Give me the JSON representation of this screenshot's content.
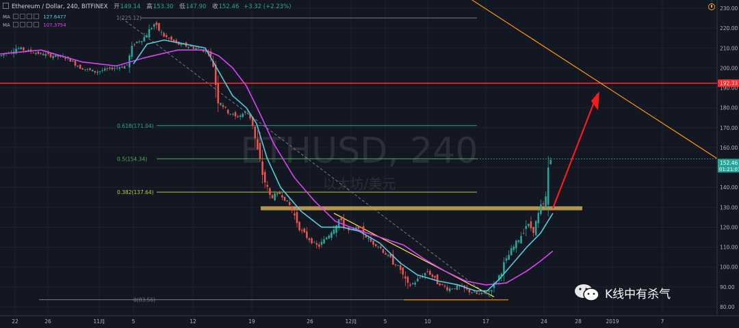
{
  "header": {
    "symbol": "Ethereum / Dollar, 240, BITFINEX",
    "open_label": "开",
    "open_value": "149.14",
    "high_label": "高",
    "high_value": "153.30",
    "low_label": "低",
    "low_value": "147.90",
    "close_label": "收",
    "close_value": "152.46",
    "change": "+3.32 (+2.23%)"
  },
  "indicators": [
    {
      "label": "MA",
      "value": "127.6477",
      "color": "#4dd0e1"
    },
    {
      "label": "MA",
      "value": "107.3754",
      "color": "#e040fb"
    }
  ],
  "watermark": {
    "title": "ETHUSD, 240",
    "subtitle": "以太坊/美元"
  },
  "wechat": {
    "text": "K线中有杀气",
    "icon": "wechat-icon"
  },
  "colors": {
    "background": "#131722",
    "up": "#26a69a",
    "down": "#ef5350",
    "ma_fast": "#4dd0e1",
    "ma_slow": "#e040fb",
    "resistance": "#ff2a2a",
    "trendline": "#ff9800",
    "arrow": "#ff1a1a",
    "support_zone": "#c8a052"
  },
  "chart_data": {
    "type": "candlestick",
    "ylim": [
      78,
      232
    ],
    "y_ticks": [
      "230.00",
      "220.00",
      "210.00",
      "200.00",
      "190.00",
      "180.00",
      "170.00",
      "160.00",
      "150.00",
      "140.00",
      "130.00",
      "120.00",
      "110.00",
      "100.00",
      "90.00",
      "80.00"
    ],
    "x_ticks": [
      "22",
      "26",
      "11月",
      "5",
      "12",
      "19",
      "26",
      "12月",
      "5",
      "10",
      "17",
      "24",
      "28",
      "2019",
      "7"
    ],
    "price_labels": [
      {
        "value": 192.33,
        "text": "192.33",
        "color": "#ff2a2a"
      },
      {
        "value": 152.46,
        "text": "152.46",
        "sub": "01:21:07",
        "color": "#26a69a"
      }
    ],
    "fib_levels": [
      {
        "label": "1(225.12)",
        "value": 225.12,
        "color": "#787b86"
      },
      {
        "label": "0.618(171.04)",
        "value": 171.04,
        "color": "#26a69a"
      },
      {
        "label": "0.5(154.34)",
        "value": 154.34,
        "color": "#4caf50"
      },
      {
        "label": "0.382(137.64)",
        "value": 137.64,
        "color": "#c0ca33"
      },
      {
        "label": "0(83.56)",
        "value": 83.56,
        "color": "#787b86"
      }
    ],
    "resistance_level": 192.33,
    "support_zone": [
      128.5,
      130.5
    ],
    "price_path": [
      [
        0,
        206
      ],
      [
        25,
        210
      ],
      [
        60,
        207
      ],
      [
        100,
        205
      ],
      [
        118,
        200
      ],
      [
        140,
        198
      ],
      [
        165,
        200
      ],
      [
        185,
        201
      ],
      [
        195,
        212
      ],
      [
        210,
        215
      ],
      [
        225,
        222
      ],
      [
        240,
        216
      ],
      [
        260,
        212
      ],
      [
        285,
        210
      ],
      [
        305,
        208
      ],
      [
        312,
        201
      ],
      [
        318,
        185
      ],
      [
        330,
        179
      ],
      [
        345,
        175
      ],
      [
        360,
        178
      ],
      [
        368,
        174
      ],
      [
        375,
        160
      ],
      [
        385,
        145
      ],
      [
        395,
        135
      ],
      [
        410,
        137
      ],
      [
        425,
        130
      ],
      [
        440,
        118
      ],
      [
        455,
        113
      ],
      [
        465,
        110
      ],
      [
        480,
        116
      ],
      [
        495,
        124
      ],
      [
        510,
        118
      ],
      [
        525,
        120
      ],
      [
        540,
        113
      ],
      [
        555,
        110
      ],
      [
        570,
        104
      ],
      [
        585,
        99
      ],
      [
        595,
        90
      ],
      [
        605,
        92
      ],
      [
        615,
        95
      ],
      [
        625,
        98
      ],
      [
        640,
        92
      ],
      [
        655,
        89
      ],
      [
        670,
        90
      ],
      [
        685,
        88
      ],
      [
        700,
        86
      ],
      [
        715,
        88
      ],
      [
        725,
        92
      ],
      [
        735,
        100
      ],
      [
        745,
        107
      ],
      [
        760,
        115
      ],
      [
        770,
        122
      ],
      [
        780,
        118
      ],
      [
        790,
        130
      ],
      [
        797,
        132
      ],
      [
        800,
        145
      ],
      [
        803,
        155
      ],
      [
        808,
        152
      ]
    ],
    "ma_fast_path": [
      [
        195,
        202
      ],
      [
        215,
        212
      ],
      [
        240,
        214
      ],
      [
        270,
        212
      ],
      [
        300,
        210
      ],
      [
        320,
        198
      ],
      [
        340,
        186
      ],
      [
        360,
        180
      ],
      [
        375,
        172
      ],
      [
        390,
        155
      ],
      [
        410,
        140
      ],
      [
        440,
        128
      ],
      [
        470,
        120
      ],
      [
        500,
        120
      ],
      [
        525,
        118
      ],
      [
        555,
        112
      ],
      [
        585,
        102
      ],
      [
        610,
        96
      ],
      [
        640,
        93
      ],
      [
        670,
        91
      ],
      [
        695,
        88
      ],
      [
        712,
        88
      ],
      [
        730,
        94
      ],
      [
        750,
        102
      ],
      [
        770,
        110
      ],
      [
        790,
        117
      ],
      [
        808,
        127
      ]
    ],
    "ma_slow_path": [
      [
        0,
        207
      ],
      [
        60,
        209
      ],
      [
        120,
        203
      ],
      [
        170,
        201
      ],
      [
        210,
        205
      ],
      [
        260,
        209
      ],
      [
        300,
        209
      ],
      [
        320,
        206
      ],
      [
        340,
        200
      ],
      [
        360,
        191
      ],
      [
        380,
        177
      ],
      [
        400,
        162
      ],
      [
        430,
        145
      ],
      [
        460,
        133
      ],
      [
        490,
        123
      ],
      [
        520,
        119
      ],
      [
        555,
        115
      ],
      [
        590,
        111
      ],
      [
        620,
        104
      ],
      [
        650,
        98
      ],
      [
        680,
        93
      ],
      [
        710,
        91
      ],
      [
        740,
        92
      ],
      [
        770,
        98
      ],
      [
        790,
        103
      ],
      [
        808,
        108
      ]
    ],
    "annotations": [
      {
        "type": "trendline",
        "desc": "orange descending resistance line"
      },
      {
        "type": "arrow",
        "desc": "red arrow pointing to 192.33 target"
      }
    ]
  }
}
